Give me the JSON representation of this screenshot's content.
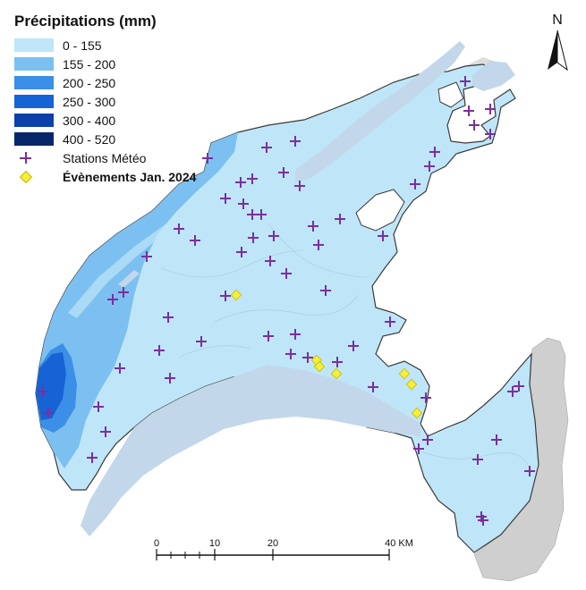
{
  "legend": {
    "title": "Précipitations (mm)",
    "classes": [
      {
        "label": "0 - 155",
        "color": "#bfe6f8"
      },
      {
        "label": "155 - 200",
        "color": "#7cc0f1"
      },
      {
        "label": "200 - 250",
        "color": "#3b8fe6"
      },
      {
        "label": "250 - 300",
        "color": "#1663d6"
      },
      {
        "label": "300 - 400",
        "color": "#0d40a8"
      },
      {
        "label": "400 - 520",
        "color": "#07276a"
      }
    ],
    "stations_label": "Stations Météo",
    "events_label": "Évènements Jan. 2024"
  },
  "north_arrow": {
    "label": "N"
  },
  "scale_bar": {
    "ticks": [
      "0",
      "10",
      "20",
      "40 KM"
    ]
  },
  "colors": {
    "lake": "#c2d7ea",
    "station": "#7b2f9e",
    "event": "#f4ef3a",
    "relief": "#c9c9c9"
  }
}
